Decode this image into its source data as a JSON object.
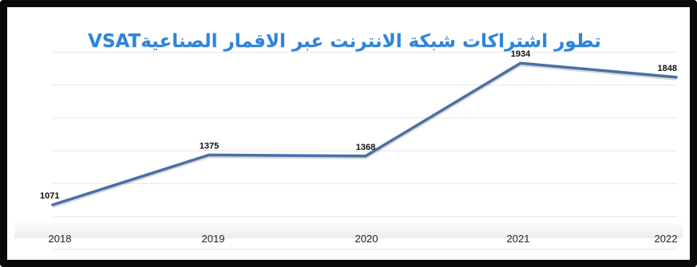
{
  "chart_data": {
    "type": "line",
    "title": "تطور اشتراكات شبكة الانترنت عبر الاقمار الصناعيةVSAT",
    "categories": [
      "2018",
      "2019",
      "2020",
      "2021",
      "2022"
    ],
    "series": [
      {
        "values": [
          1071,
          1375,
          1368,
          1934,
          1848
        ]
      }
    ],
    "ylim": [
      600,
      2100
    ],
    "grid": true,
    "legend": "none",
    "line_color": "#4a6fa5",
    "title_color": "#2f84d8"
  }
}
